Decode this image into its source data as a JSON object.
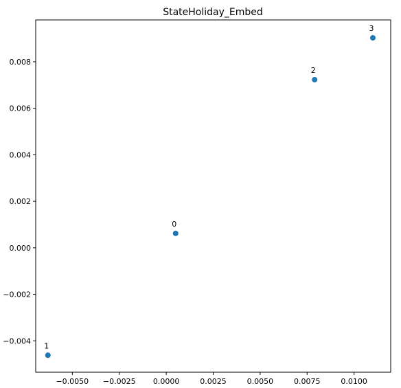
{
  "chart_data": {
    "type": "scatter",
    "title": "StateHoliday_Embed",
    "xlabel": "",
    "ylabel": "",
    "xlim": [
      -0.00695,
      0.01195
    ],
    "ylim": [
      -0.00535,
      0.0098
    ],
    "x_ticks": [
      -0.005,
      -0.0025,
      0.0,
      0.0025,
      0.005,
      0.0075,
      0.01
    ],
    "x_tick_labels": [
      "−0.0050",
      "−0.0025",
      "0.0000",
      "0.0025",
      "0.0050",
      "0.0075",
      "0.0100"
    ],
    "y_ticks": [
      -0.004,
      -0.002,
      0.0,
      0.002,
      0.004,
      0.006,
      0.008
    ],
    "y_tick_labels": [
      "−0.004",
      "−0.002",
      "0.000",
      "0.002",
      "0.004",
      "0.006",
      "0.008"
    ],
    "grid": false,
    "points": [
      {
        "label": "0",
        "x": 0.0005,
        "y": 0.00062
      },
      {
        "label": "1",
        "x": -0.0063,
        "y": -0.00462
      },
      {
        "label": "2",
        "x": 0.0079,
        "y": 0.00723
      },
      {
        "label": "3",
        "x": 0.011,
        "y": 0.00903
      }
    ],
    "colors": {
      "marker": "#1f77b4",
      "axes": "#000000"
    }
  }
}
